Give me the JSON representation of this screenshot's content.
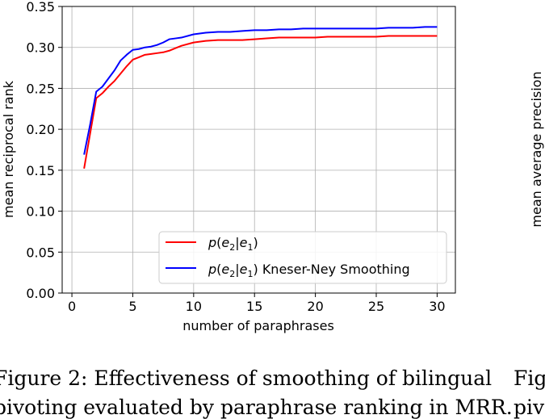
{
  "chart_data": {
    "type": "line",
    "xlabel": "number of paraphrases",
    "ylabel": "mean reciprocal rank",
    "xlim": [
      -0.8,
      31.5
    ],
    "ylim": [
      0.0,
      0.35
    ],
    "xticks": [
      0,
      5,
      10,
      15,
      20,
      25,
      30
    ],
    "xtick_labels": [
      "0",
      "5",
      "10",
      "15",
      "20",
      "25",
      "30"
    ],
    "yticks": [
      0.0,
      0.05,
      0.1,
      0.15,
      0.2,
      0.25,
      0.3,
      0.35
    ],
    "ytick_labels": [
      "0.00",
      "0.05",
      "0.10",
      "0.15",
      "0.20",
      "0.25",
      "0.30",
      "0.35"
    ],
    "grid": true,
    "legend_position": "lower-right",
    "x": [
      1,
      1.5,
      2,
      2.5,
      3,
      3.5,
      4,
      4.5,
      5,
      5.5,
      6,
      6.5,
      7,
      7.5,
      8,
      8.5,
      9,
      10,
      11,
      12,
      13,
      14,
      15,
      16,
      17,
      18,
      19,
      20,
      21,
      22,
      23,
      24,
      25,
      26,
      27,
      28,
      29,
      30
    ],
    "series": [
      {
        "name": "p(e2|e1)",
        "legend_text": [
          "p",
          "(",
          "e",
          "2",
          "|",
          "e",
          "1",
          ")"
        ],
        "color": "#ff0000",
        "values": [
          0.152,
          0.195,
          0.238,
          0.244,
          0.252,
          0.259,
          0.268,
          0.277,
          0.285,
          0.288,
          0.291,
          0.292,
          0.293,
          0.294,
          0.296,
          0.299,
          0.302,
          0.306,
          0.308,
          0.309,
          0.309,
          0.309,
          0.31,
          0.311,
          0.312,
          0.312,
          0.312,
          0.312,
          0.313,
          0.313,
          0.313,
          0.313,
          0.313,
          0.314,
          0.314,
          0.314,
          0.314,
          0.314
        ]
      },
      {
        "name": "p(e2|e1) Kneser-Ney Smoothing",
        "legend_text": [
          "p",
          "(",
          "e",
          "2",
          "|",
          "e",
          "1",
          ") Kneser-Ney Smoothing"
        ],
        "color": "#0000ff",
        "values": [
          0.169,
          0.206,
          0.246,
          0.252,
          0.262,
          0.272,
          0.284,
          0.291,
          0.297,
          0.298,
          0.3,
          0.301,
          0.303,
          0.306,
          0.31,
          0.311,
          0.312,
          0.316,
          0.318,
          0.319,
          0.319,
          0.32,
          0.321,
          0.321,
          0.322,
          0.322,
          0.323,
          0.323,
          0.323,
          0.323,
          0.323,
          0.323,
          0.323,
          0.324,
          0.324,
          0.324,
          0.325,
          0.325
        ]
      }
    ]
  },
  "right_panel": {
    "ylabel": "mean average precision",
    "caption_line1": "Fig",
    "caption_line2": "piv"
  },
  "caption": {
    "line1": "Figure 2: Effectiveness of smoothing of bilingual",
    "line2": "pivoting evaluated by paraphrase ranking in MRR."
  }
}
